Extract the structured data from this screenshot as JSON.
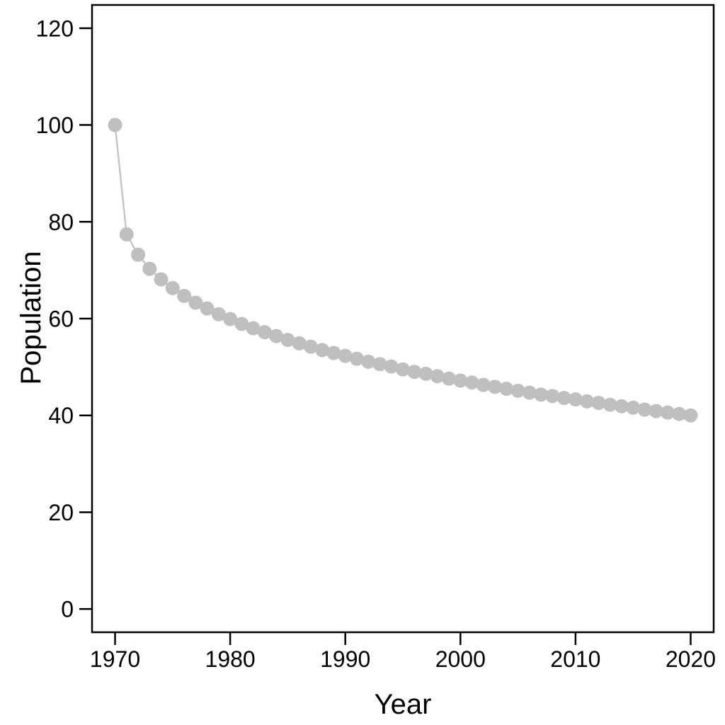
{
  "chart_data": {
    "type": "line",
    "marker": "filled-circle",
    "title": "",
    "xlabel": "Year",
    "ylabel": "Population",
    "x": [
      1970,
      1971,
      1972,
      1973,
      1974,
      1975,
      1976,
      1977,
      1978,
      1979,
      1980,
      1981,
      1982,
      1983,
      1984,
      1985,
      1986,
      1987,
      1988,
      1989,
      1990,
      1991,
      1992,
      1993,
      1994,
      1995,
      1996,
      1997,
      1998,
      1999,
      2000,
      2001,
      2002,
      2003,
      2004,
      2005,
      2006,
      2007,
      2008,
      2009,
      2010,
      2011,
      2012,
      2013,
      2014,
      2015,
      2016,
      2017,
      2018,
      2019,
      2020
    ],
    "y": [
      100,
      77.4,
      73.2,
      70.3,
      68.1,
      66.3,
      64.7,
      63.3,
      62.1,
      60.9,
      59.9,
      58.9,
      58.0,
      57.2,
      56.4,
      55.6,
      54.9,
      54.2,
      53.5,
      52.9,
      52.3,
      51.7,
      51.1,
      50.6,
      50.1,
      49.5,
      49.0,
      48.6,
      48.1,
      47.6,
      47.2,
      46.8,
      46.3,
      45.9,
      45.5,
      45.1,
      44.7,
      44.3,
      44.0,
      43.6,
      43.3,
      42.9,
      42.6,
      42.2,
      41.9,
      41.6,
      41.2,
      40.9,
      40.6,
      40.3,
      40.0
    ],
    "xticks": [
      1970,
      1980,
      1990,
      2000,
      2010,
      2020
    ],
    "yticks": [
      0,
      20,
      40,
      60,
      80,
      100,
      120
    ],
    "xlim": [
      1968,
      2022
    ],
    "ylim": [
      -4.8,
      124.8
    ],
    "grid": "off",
    "legend": "none",
    "point_color": "#bfbfbf",
    "line_color": "#c6c6c6",
    "axis_color": "#000000",
    "background_color": "#ffffff",
    "marker_radius": 10
  }
}
